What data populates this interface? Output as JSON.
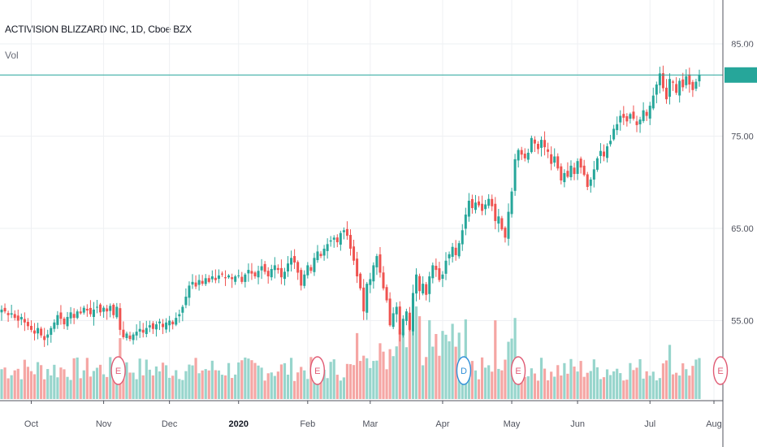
{
  "header": {
    "title": "ACTIVISION BLIZZARD INC, 1D, Cboe BZX",
    "volume_label": "Vol"
  },
  "last_price": "81.63",
  "colors": {
    "up": "#26a69a",
    "down": "#ef5350",
    "up_volume": "#97d5cc",
    "down_volume": "#f5a6a4",
    "price_line": "#26a69a",
    "grid": "#eef0f3",
    "axis_text": "#50535e",
    "event_earnings": "#e05b74",
    "event_dividend": "#2f8fd8"
  },
  "chart_data": {
    "type": "candlestick",
    "title": "ACTIVISION BLIZZARD INC, 1D, Cboe BZX",
    "ylim": [
      46.5,
      88
    ],
    "y_ticks": [
      "85.00",
      "75.00",
      "65.00",
      "55.00"
    ],
    "x_ticks": [
      "Oct",
      "Nov",
      "Dec",
      "2020",
      "Feb",
      "Mar",
      "Apr",
      "May",
      "Jun",
      "Jul",
      "Aug"
    ],
    "grid": true,
    "current_price": 81.63,
    "daily_closes_by_month": {
      "Sep-2019": [
        56.2,
        56.0,
        55.6,
        55.8,
        55.3,
        55.0,
        55.4,
        54.8,
        54.4
      ],
      "Oct-2019": [
        54.0,
        53.6,
        54.2,
        53.4,
        52.9,
        53.5,
        54.2,
        54.8,
        55.6,
        55.2,
        54.6,
        55.4,
        55.9,
        55.3,
        56.0,
        55.8,
        56.4,
        56.1,
        55.7,
        56.2,
        56.5,
        55.9
      ],
      "Nov-2019": [
        56.4,
        56.0,
        56.6,
        55.6,
        56.5,
        54.0,
        53.2,
        53.6,
        53.0,
        53.5,
        53.8,
        54.1,
        53.7,
        54.2,
        54.5,
        54.1,
        54.6,
        54.9,
        54.3,
        54.8
      ],
      "Dec-2019": [
        55.0,
        54.6,
        55.3,
        55.7,
        56.5,
        57.6,
        58.8,
        59.2,
        58.7,
        59.4,
        59.0,
        59.6,
        59.2,
        59.8,
        59.4,
        59.9,
        60.0,
        59.6,
        59.9,
        59.5,
        59.8
      ],
      "Jan-2020": [
        59.9,
        59.2,
        60.0,
        60.5,
        60.1,
        59.8,
        60.4,
        60.9,
        60.3,
        59.8,
        60.6,
        61.0,
        60.5,
        59.7,
        60.3,
        61.2,
        61.8,
        61.3,
        60.2,
        58.8,
        60.0
      ],
      "Feb-2020": [
        61.0,
        60.4,
        61.8,
        62.5,
        62.0,
        62.8,
        63.3,
        63.7,
        64.0,
        63.5,
        64.5,
        64.8,
        64.2,
        62.8,
        61.5,
        59.8,
        58.5,
        56.0,
        59.0
      ],
      "Mar-2020": [
        59.5,
        61.0,
        62.0,
        60.2,
        58.5,
        57.2,
        54.5,
        55.8,
        56.5,
        53.5,
        55.2,
        56.0,
        54.0,
        58.0,
        60.0,
        58.2,
        59.0,
        57.8,
        59.8,
        61.0,
        60.5,
        59.4
      ],
      "Apr-2020": [
        60.0,
        61.5,
        62.2,
        63.0,
        62.1,
        63.4,
        64.8,
        66.5,
        68.0,
        67.2,
        67.8,
        67.5,
        66.9,
        67.6,
        68.2,
        67.4,
        65.8,
        66.3,
        64.9,
        64.0,
        66.8
      ],
      "May-2020": [
        69.0,
        72.5,
        73.5,
        73.0,
        72.6,
        73.2,
        74.8,
        74.2,
        73.6,
        74.6,
        73.8,
        73.3,
        72.0,
        72.8,
        71.5,
        70.2,
        71.0,
        70.6,
        71.8,
        70.9
      ],
      "Jun-2020": [
        72.3,
        71.6,
        70.8,
        69.5,
        70.3,
        71.4,
        72.6,
        73.4,
        72.8,
        73.9,
        74.5,
        75.8,
        76.3,
        77.2,
        77.0,
        76.6,
        77.4,
        76.9,
        76.2,
        76.8,
        77.8,
        77.2
      ],
      "Jul-2020": [
        78.3,
        79.4,
        80.6,
        81.8,
        80.2,
        79.0,
        81.2,
        80.8,
        79.7,
        81.0,
        80.3,
        81.5,
        80.6,
        80.0,
        80.9,
        81.63
      ]
    },
    "volume_bars": "one per session, shown beneath price; volume axis unlabeled",
    "events": [
      {
        "label": "E",
        "month": "Nov"
      },
      {
        "label": "E",
        "month": "Feb"
      },
      {
        "label": "D",
        "month": "Apr"
      },
      {
        "label": "E",
        "month": "May"
      },
      {
        "label": "E",
        "month": "Aug"
      }
    ]
  }
}
